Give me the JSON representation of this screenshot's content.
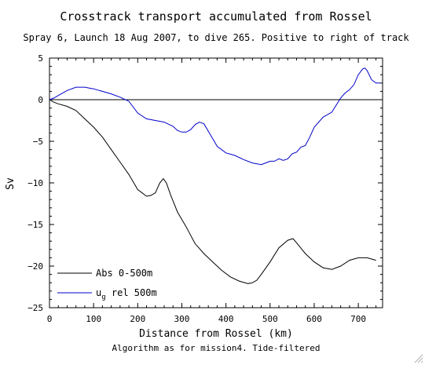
{
  "chart_data": {
    "type": "line",
    "title": "Crosstrack transport accumulated from Rossel",
    "subtitle": "Spray 6, Launch 18 Aug 2007, to dive 265. Positive to right of track",
    "xlabel": "Distance from Rossel (km)",
    "ylabel": "Sv",
    "footnote": "Algorithm as for mission4. Tide-filtered",
    "xlim": [
      0,
      755
    ],
    "ylim": [
      -25,
      5
    ],
    "xticks": [
      0,
      100,
      200,
      300,
      400,
      500,
      600,
      700
    ],
    "yticks": [
      5,
      0,
      -5,
      -10,
      -15,
      -20,
      -25
    ],
    "zero_line": true,
    "legend_position": "bottom-left",
    "series": [
      {
        "name": "Abs 0-500m",
        "color": "#000000",
        "x": [
          0,
          10,
          20,
          40,
          60,
          80,
          100,
          120,
          140,
          160,
          180,
          200,
          210,
          220,
          230,
          240,
          250,
          258,
          265,
          275,
          290,
          310,
          330,
          350,
          370,
          390,
          410,
          430,
          450,
          460,
          470,
          480,
          500,
          520,
          540,
          552,
          560,
          580,
          600,
          620,
          640,
          660,
          680,
          700,
          720,
          740
        ],
        "y": [
          0,
          -0.3,
          -0.5,
          -0.8,
          -1.3,
          -2.3,
          -3.3,
          -4.5,
          -6.0,
          -7.5,
          -9.0,
          -10.8,
          -11.2,
          -11.6,
          -11.5,
          -11.2,
          -10.0,
          -9.5,
          -10.0,
          -11.5,
          -13.5,
          -15.3,
          -17.3,
          -18.5,
          -19.5,
          -20.5,
          -21.3,
          -21.8,
          -22.1,
          -22.0,
          -21.7,
          -21.0,
          -19.5,
          -17.8,
          -16.9,
          -16.7,
          -17.2,
          -18.5,
          -19.5,
          -20.2,
          -20.4,
          -20.0,
          -19.3,
          -19.0,
          -19.0,
          -19.3
        ]
      },
      {
        "name": "u_g rel 500m",
        "color": "#0000cc",
        "x": [
          0,
          10,
          20,
          40,
          60,
          80,
          100,
          120,
          140,
          160,
          180,
          190,
          200,
          220,
          240,
          260,
          280,
          290,
          300,
          310,
          320,
          330,
          340,
          350,
          360,
          370,
          380,
          400,
          420,
          440,
          460,
          480,
          490,
          500,
          510,
          520,
          530,
          540,
          550,
          560,
          570,
          580,
          590,
          600,
          620,
          640,
          660,
          670,
          680,
          690,
          700,
          710,
          715,
          720,
          730,
          740,
          750
        ],
        "y": [
          0,
          0.2,
          0.5,
          1.1,
          1.5,
          1.5,
          1.3,
          1.0,
          0.7,
          0.3,
          -0.2,
          -0.9,
          -1.6,
          -2.3,
          -2.5,
          -2.7,
          -3.2,
          -3.7,
          -3.9,
          -3.9,
          -3.6,
          -3.0,
          -2.7,
          -2.9,
          -3.8,
          -4.7,
          -5.6,
          -6.4,
          -6.7,
          -7.2,
          -7.6,
          -7.8,
          -7.6,
          -7.4,
          -7.4,
          -7.1,
          -7.3,
          -7.1,
          -6.5,
          -6.3,
          -5.7,
          -5.5,
          -4.5,
          -3.3,
          -2.1,
          -1.5,
          0.2,
          0.8,
          1.2,
          1.8,
          3.0,
          3.7,
          3.8,
          3.5,
          2.4,
          2.0,
          2.0
        ]
      }
    ]
  },
  "legend": {
    "abs_label": "Abs 0-500m",
    "ug_main": "u",
    "ug_sub": "g",
    "ug_rest": " rel 500m"
  }
}
